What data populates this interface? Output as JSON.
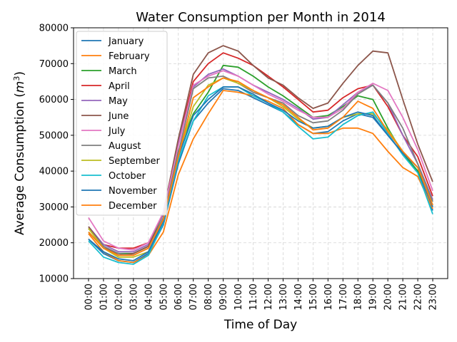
{
  "chart_data": {
    "type": "line",
    "title": "Water Consumption per Month in 2014",
    "xlabel": "Time of Day",
    "ylabel": "Average Consumption (m³)",
    "ylabel_base": "Average Consumption (",
    "ylabel_unit": "m",
    "ylabel_exp": "3",
    "ylabel_close": ")",
    "ylim": [
      10000,
      80000
    ],
    "yticks": [
      10000,
      20000,
      30000,
      40000,
      50000,
      60000,
      70000,
      80000
    ],
    "grid": true,
    "legend_position": "top-left",
    "x": [
      "00:00",
      "01:00",
      "02:00",
      "03:00",
      "04:00",
      "05:00",
      "06:00",
      "07:00",
      "08:00",
      "09:00",
      "10:00",
      "11:00",
      "12:00",
      "13:00",
      "14:00",
      "15:00",
      "16:00",
      "17:00",
      "18:00",
      "19:00",
      "20:00",
      "21:00",
      "22:00",
      "23:00"
    ],
    "series": [
      {
        "name": "January",
        "color": "#1f77b4",
        "values": [
          21000,
          17000,
          15000,
          14500,
          17000,
          25000,
          42000,
          54000,
          59000,
          63000,
          62500,
          60500,
          58500,
          56500,
          53000,
          50500,
          51000,
          54000,
          56000,
          55000,
          50000,
          45000,
          40000,
          29000
        ]
      },
      {
        "name": "February",
        "color": "#ff7f0e",
        "values": [
          22500,
          17500,
          15000,
          14500,
          16500,
          23000,
          39000,
          49000,
          56000,
          62500,
          62000,
          61000,
          59500,
          57500,
          53000,
          50500,
          50500,
          52000,
          52000,
          50500,
          45500,
          41000,
          38500,
          29500
        ]
      },
      {
        "name": "March",
        "color": "#2ca02c",
        "values": [
          23000,
          18500,
          17000,
          17000,
          19000,
          27000,
          45500,
          56000,
          62000,
          69500,
          69000,
          66500,
          63500,
          61000,
          58000,
          55000,
          55500,
          58000,
          61000,
          60000,
          52000,
          45000,
          40000,
          31500
        ]
      },
      {
        "name": "April",
        "color": "#d62728",
        "values": [
          24000,
          19500,
          18500,
          18500,
          20000,
          28000,
          48000,
          65000,
          70000,
          73000,
          71500,
          69500,
          66500,
          63500,
          60000,
          56500,
          57000,
          60500,
          63000,
          64000,
          58000,
          50000,
          44000,
          33000
        ]
      },
      {
        "name": "May",
        "color": "#9467bd",
        "values": [
          24500,
          19500,
          17500,
          17500,
          19500,
          28000,
          48000,
          63500,
          67000,
          68500,
          66500,
          64000,
          62000,
          60000,
          57500,
          54500,
          55000,
          58500,
          62000,
          64000,
          59000,
          50000,
          42000,
          32000
        ]
      },
      {
        "name": "June",
        "color": "#8c564b",
        "values": [
          24500,
          19000,
          16500,
          17000,
          19000,
          28500,
          49000,
          67000,
          73000,
          75000,
          73500,
          69500,
          66000,
          64000,
          60500,
          57500,
          59000,
          64500,
          69500,
          73500,
          73000,
          60000,
          47500,
          37000
        ]
      },
      {
        "name": "July",
        "color": "#e377c2",
        "values": [
          27000,
          20500,
          18500,
          18000,
          20000,
          28500,
          47000,
          64000,
          66500,
          68000,
          66500,
          64000,
          61500,
          59500,
          57000,
          55000,
          55000,
          57500,
          62000,
          64500,
          62500,
          55000,
          46000,
          34500
        ]
      },
      {
        "name": "August",
        "color": "#7f7f7f",
        "values": [
          24000,
          19000,
          17000,
          16500,
          18500,
          27000,
          45000,
          63000,
          66000,
          66500,
          64500,
          62000,
          60500,
          59000,
          55500,
          53500,
          54000,
          57000,
          61500,
          64000,
          59000,
          52000,
          42000,
          31500
        ]
      },
      {
        "name": "September",
        "color": "#bcbd22",
        "values": [
          24000,
          18500,
          16000,
          16000,
          17500,
          26000,
          44000,
          58000,
          64000,
          66000,
          64500,
          62500,
          60500,
          58000,
          54500,
          52000,
          52500,
          55000,
          56000,
          56000,
          51500,
          45500,
          41000,
          30500
        ]
      },
      {
        "name": "October",
        "color": "#17becf",
        "values": [
          20500,
          16000,
          14500,
          14000,
          16500,
          25500,
          43000,
          54000,
          61000,
          63500,
          63500,
          61000,
          59000,
          56500,
          52500,
          49000,
          49500,
          53000,
          55500,
          56500,
          50500,
          44500,
          39500,
          28000
        ]
      },
      {
        "name": "November",
        "color": "#1f77b4",
        "values": [
          21000,
          17500,
          15500,
          15000,
          17500,
          26000,
          44000,
          55500,
          60000,
          63500,
          63500,
          61500,
          59000,
          57000,
          54000,
          52000,
          52500,
          55000,
          56500,
          55500,
          50000,
          45000,
          41000,
          30000
        ]
      },
      {
        "name": "December",
        "color": "#ff7f0e",
        "values": [
          23000,
          18500,
          16500,
          16500,
          18500,
          26500,
          44000,
          60500,
          63500,
          66000,
          65000,
          62500,
          60500,
          58500,
          55000,
          51500,
          52000,
          55000,
          59500,
          57500,
          51000,
          45500,
          41000,
          30500
        ]
      }
    ]
  }
}
